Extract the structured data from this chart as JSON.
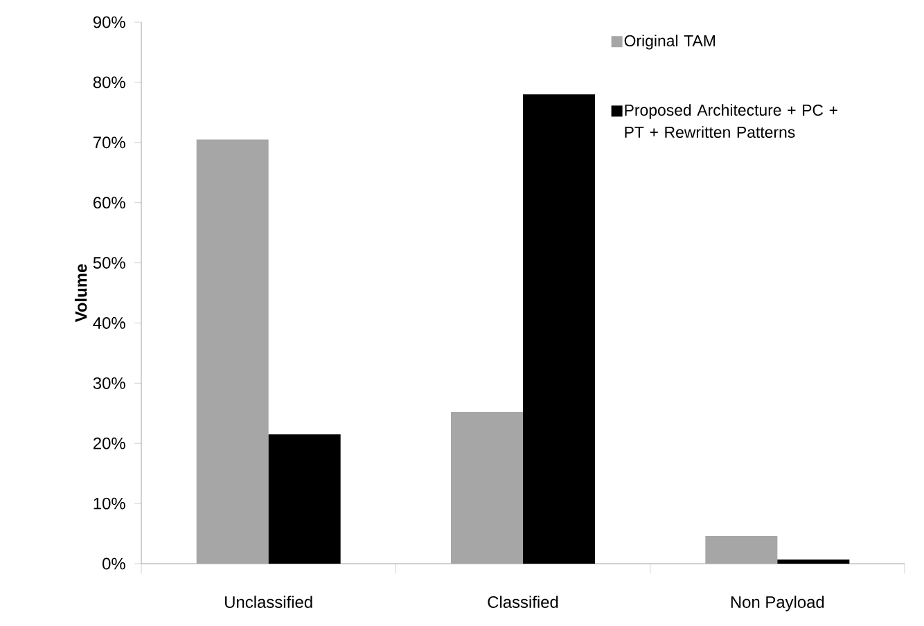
{
  "chart_data": {
    "type": "bar",
    "ylabel": "Volume",
    "categories": [
      "Unclassified",
      "Classified",
      "Non Payload"
    ],
    "series": [
      {
        "name": "Original TAM",
        "color": "#a6a6a6",
        "values": [
          70.5,
          25.2,
          4.6
        ]
      },
      {
        "name": "Proposed Architecture + PC + PT + Rewritten Patterns",
        "color": "#000000",
        "values": [
          21.5,
          78.0,
          0.7
        ]
      }
    ],
    "ylim": [
      0,
      90
    ],
    "yticks": [
      {
        "value": 0,
        "label": "0%"
      },
      {
        "value": 10,
        "label": "10%"
      },
      {
        "value": 20,
        "label": "20%"
      },
      {
        "value": 30,
        "label": "30%"
      },
      {
        "value": 40,
        "label": "40%"
      },
      {
        "value": 50,
        "label": "50%"
      },
      {
        "value": 60,
        "label": "60%"
      },
      {
        "value": 70,
        "label": "70%"
      },
      {
        "value": 80,
        "label": "80%"
      },
      {
        "value": 90,
        "label": "90%"
      }
    ],
    "grid": false,
    "legend": "top right"
  }
}
